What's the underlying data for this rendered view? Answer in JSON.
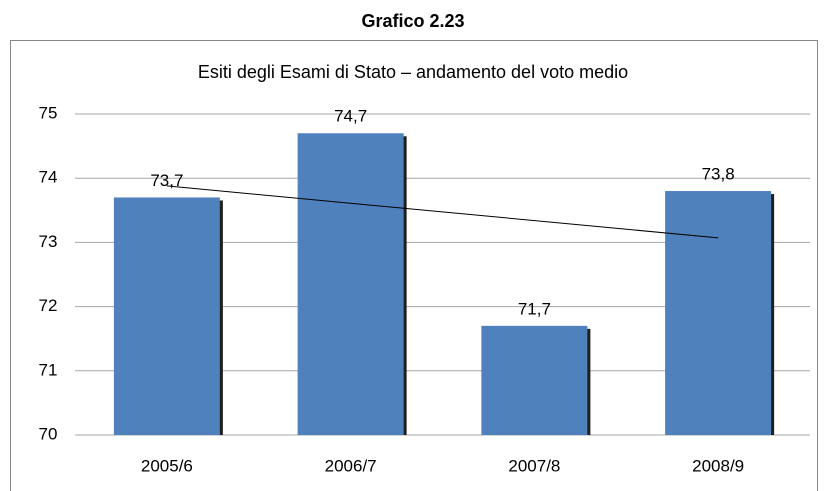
{
  "header": "Grafico 2.23",
  "chart_data": {
    "type": "bar",
    "title": "Esiti degli Esami di Stato – andamento del voto medio",
    "categories": [
      "2005/6",
      "2006/7",
      "2007/8",
      "2008/9"
    ],
    "values": [
      73.7,
      74.7,
      71.7,
      73.8
    ],
    "value_labels": [
      "73,7",
      "74,7",
      "71,7",
      "73,8"
    ],
    "color": "#4f81bd",
    "ylim": [
      70,
      75
    ],
    "yticks": [
      70,
      71,
      72,
      73,
      74,
      75
    ],
    "grid": true,
    "trendline": "linear"
  }
}
